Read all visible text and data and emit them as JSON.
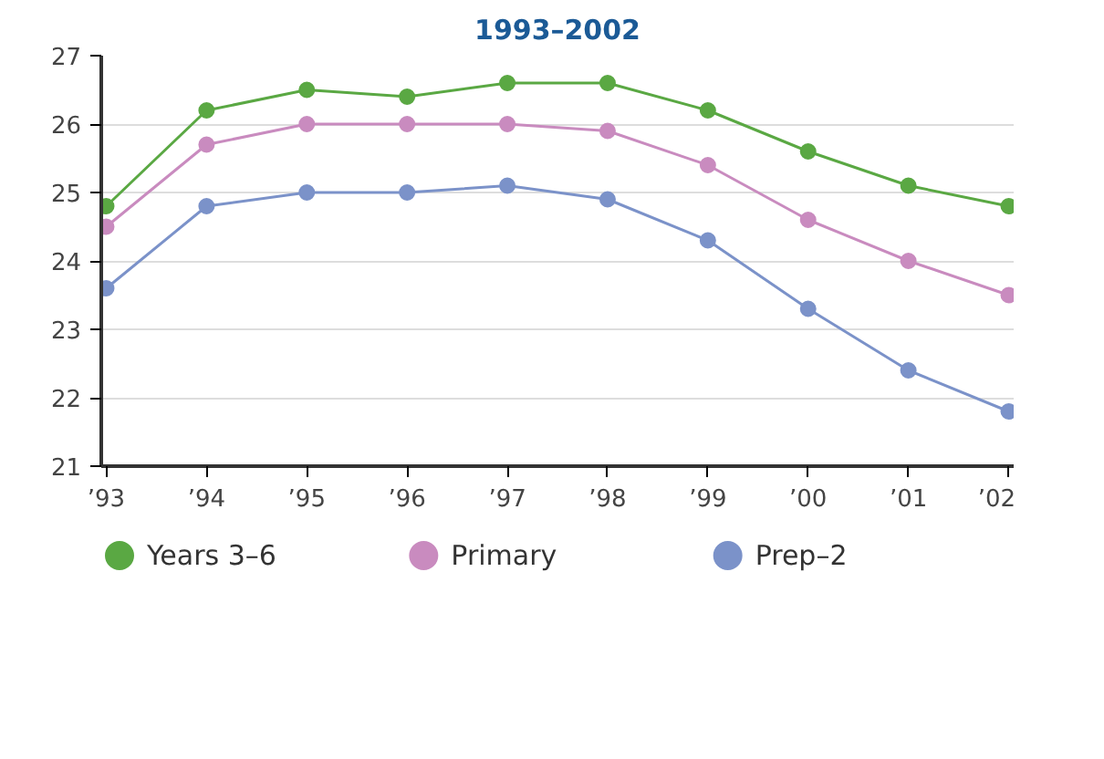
{
  "chart_data": {
    "type": "line",
    "title": "1993–2002",
    "categories": [
      "’93",
      "’94",
      "’95",
      "’96",
      "’97",
      "’98",
      "’99",
      "’00",
      "’01",
      "’02"
    ],
    "series": [
      {
        "name": "Years 3–6",
        "color": "#5aa843",
        "values": [
          24.8,
          26.2,
          26.5,
          26.4,
          26.6,
          26.6,
          26.2,
          25.6,
          25.1,
          24.8
        ]
      },
      {
        "name": "Primary",
        "color": "#c98bbf",
        "values": [
          24.5,
          25.7,
          26.0,
          26.0,
          26.0,
          25.9,
          25.4,
          24.6,
          24.0,
          23.5
        ]
      },
      {
        "name": "Prep–2",
        "color": "#7b92c9",
        "values": [
          23.6,
          24.8,
          25.0,
          25.0,
          25.1,
          24.9,
          24.3,
          23.3,
          22.4,
          21.8
        ]
      }
    ],
    "ylim": [
      21,
      27
    ],
    "yticks": [
      21,
      22,
      23,
      24,
      25,
      26,
      27
    ],
    "grid": "y",
    "legend": "bottom",
    "marker": "circle",
    "line_style": "solid"
  }
}
